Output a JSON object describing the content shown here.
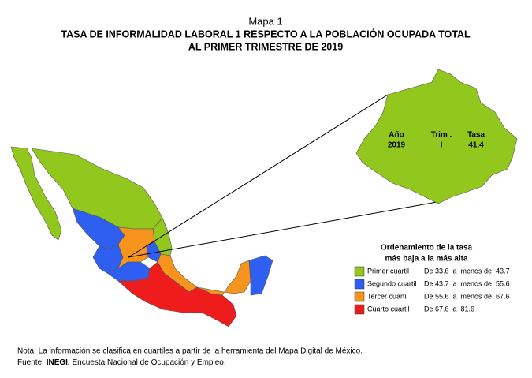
{
  "header": {
    "label": "Mapa 1",
    "title_line1": "TASA DE INFORMALIDAD LABORAL 1 RESPECTO A LA POBLACIÓN OCUPADA TOTAL",
    "title_line2": "AL PRIMER TRIMESTRE DE 2019"
  },
  "inset": {
    "columns": [
      {
        "heading": "Año",
        "value": 2019
      },
      {
        "heading": "Trim .",
        "value": "I"
      },
      {
        "heading": "Tasa",
        "value": 41.4
      }
    ],
    "color": "#92c81e"
  },
  "legend": {
    "title_line1": "Ordenamiento de la tasa",
    "title_line2": "más baja a la más alta",
    "items": [
      {
        "label": "Primer cuartil",
        "range": "De 33.6  a  menos de  43.7",
        "color": "#92c81e"
      },
      {
        "label": "Segundo cuartil",
        "range": "De 43.7  a  menos de  55.6",
        "color": "#2e5ff0"
      },
      {
        "label": "Tercer cuartil",
        "range": "De 55.6  a  menos de  67.6",
        "color": "#f7941d"
      },
      {
        "label": "Cuarto cuartil",
        "range": "De 67.6  a  81.6",
        "color": "#ee1c1c"
      }
    ]
  },
  "notes": {
    "note": "Nota: La información se clasifica en cuartiles a partir de la herramienta del Mapa Digital de México.",
    "source_prefix": "Fuente:",
    "source_bold": "INEGI.",
    "source_rest": "Encuesta Nacional de Ocupación y Empleo."
  }
}
